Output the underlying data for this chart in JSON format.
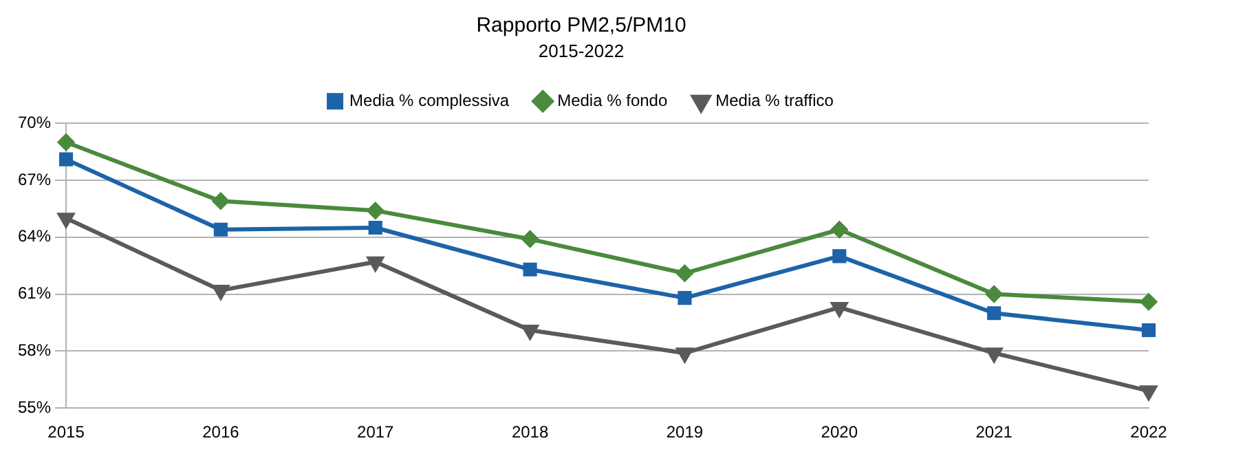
{
  "chart_data": {
    "type": "line",
    "title": "Rapporto PM2,5/PM10",
    "subtitle": "2015-2022",
    "categories": [
      "2015",
      "2016",
      "2017",
      "2018",
      "2019",
      "2020",
      "2021",
      "2022"
    ],
    "series": [
      {
        "name": "Media % complessiva",
        "color": "#1d63a8",
        "marker": "square",
        "values": [
          68.1,
          64.4,
          64.5,
          62.3,
          60.8,
          63.0,
          60.0,
          59.1
        ]
      },
      {
        "name": "Media % fondo",
        "color": "#4a8a3c",
        "marker": "diamond",
        "values": [
          69.0,
          65.9,
          65.4,
          63.9,
          62.1,
          64.4,
          61.0,
          60.6
        ]
      },
      {
        "name": "Media % traffico",
        "color": "#5a5a5a",
        "marker": "triangle",
        "values": [
          65.0,
          61.2,
          62.7,
          59.1,
          57.9,
          60.3,
          57.9,
          55.9
        ]
      }
    ],
    "ylim": [
      55,
      70
    ],
    "yticks": [
      {
        "value": 55,
        "label": "55%"
      },
      {
        "value": 58,
        "label": "58%"
      },
      {
        "value": 61,
        "label": "61%"
      },
      {
        "value": 64,
        "label": "64%"
      },
      {
        "value": 67,
        "label": "67%"
      },
      {
        "value": 70,
        "label": "70%"
      }
    ],
    "grid": "y",
    "legend": "top",
    "line_style": "solid"
  }
}
